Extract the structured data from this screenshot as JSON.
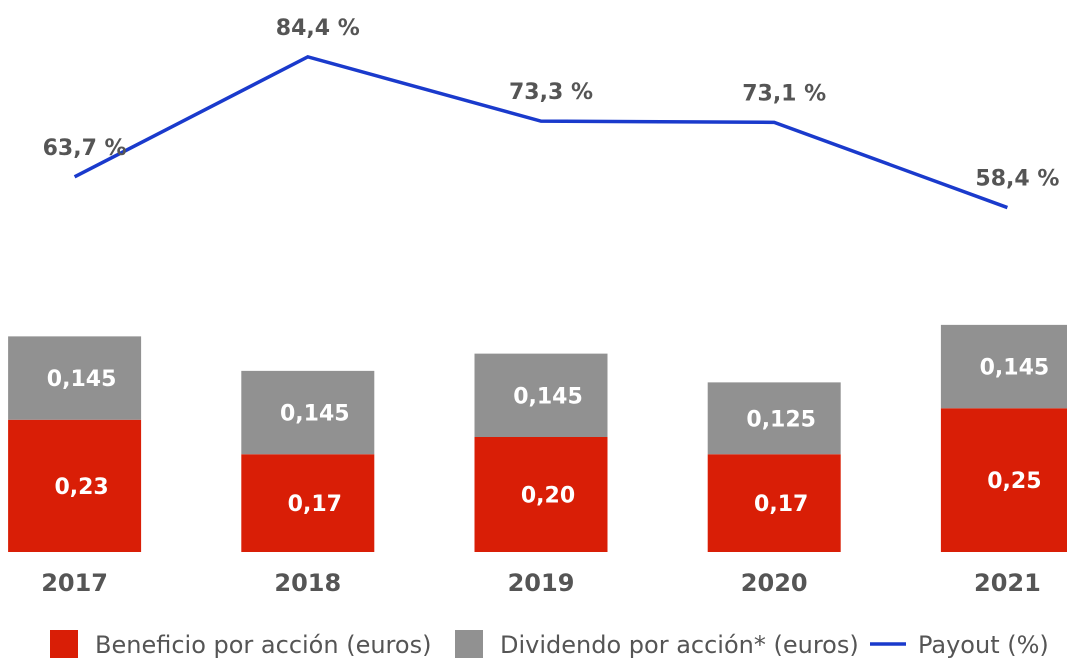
{
  "chart_data": {
    "type": "bar",
    "stacked": true,
    "categories": [
      "2017",
      "2018",
      "2019",
      "2020",
      "2021"
    ],
    "ylim": [
      0,
      0.96
    ],
    "y2lim": [
      -1,
      94.2
    ],
    "series": [
      {
        "name": "Beneficio por acción (euros)",
        "color": "#d91e06",
        "values": [
          0.23,
          0.17,
          0.2,
          0.17,
          0.25
        ],
        "value_labels": [
          "0,23",
          "0,17",
          "0,20",
          "0,17",
          "0,25"
        ]
      },
      {
        "name": "Dividendo por acción* (euros)",
        "color": "#919191",
        "values": [
          0.145,
          0.145,
          0.145,
          0.125,
          0.145
        ],
        "value_labels": [
          "0,145",
          "0,145",
          "0,145",
          "0,125",
          "0,145"
        ]
      },
      {
        "name": "Payout (%)",
        "type": "line",
        "axis": "y2",
        "color": "#1a3acc",
        "values": [
          63.7,
          84.4,
          73.3,
          73.1,
          58.4
        ],
        "value_labels": [
          "63,7 %",
          "84,4 %",
          "73,3 %",
          "73,1 %",
          "58,4 %"
        ]
      }
    ]
  }
}
